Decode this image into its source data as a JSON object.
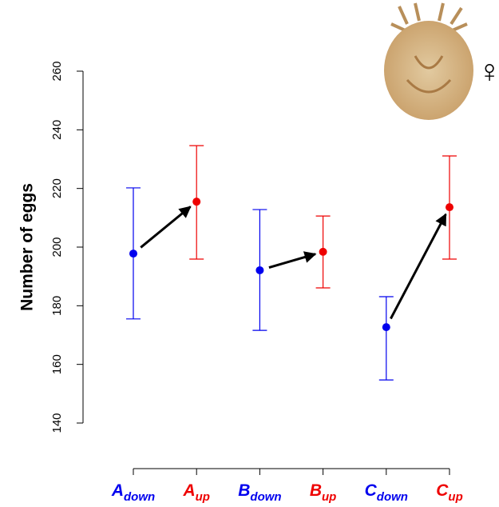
{
  "chart_data": {
    "type": "errorpoint",
    "y_label": "Number of eggs",
    "annotation": "♀",
    "categories": [
      {
        "main": "A",
        "sub": "down"
      },
      {
        "main": "A",
        "sub": "up"
      },
      {
        "main": "B",
        "sub": "down"
      },
      {
        "main": "B",
        "sub": "up"
      },
      {
        "main": "C",
        "sub": "down"
      },
      {
        "main": "C",
        "sub": "up"
      }
    ],
    "colors": [
      "#0000ee",
      "#ee0000",
      "#0000ee",
      "#ee0000",
      "#0000ee",
      "#ee0000"
    ],
    "values": [
      197.8,
      215.5,
      192.1,
      198.4,
      172.7,
      213.6
    ],
    "upper": [
      220.2,
      234.6,
      212.8,
      210.6,
      183.1,
      231.1
    ],
    "lower": [
      175.5,
      195.9,
      171.6,
      186.1,
      154.7,
      195.9
    ],
    "arrows": [
      [
        0,
        1
      ],
      [
        2,
        3
      ],
      [
        4,
        5
      ]
    ],
    "ylim": [
      140,
      260
    ],
    "yticks": [
      140,
      160,
      180,
      200,
      220,
      240,
      260
    ]
  }
}
